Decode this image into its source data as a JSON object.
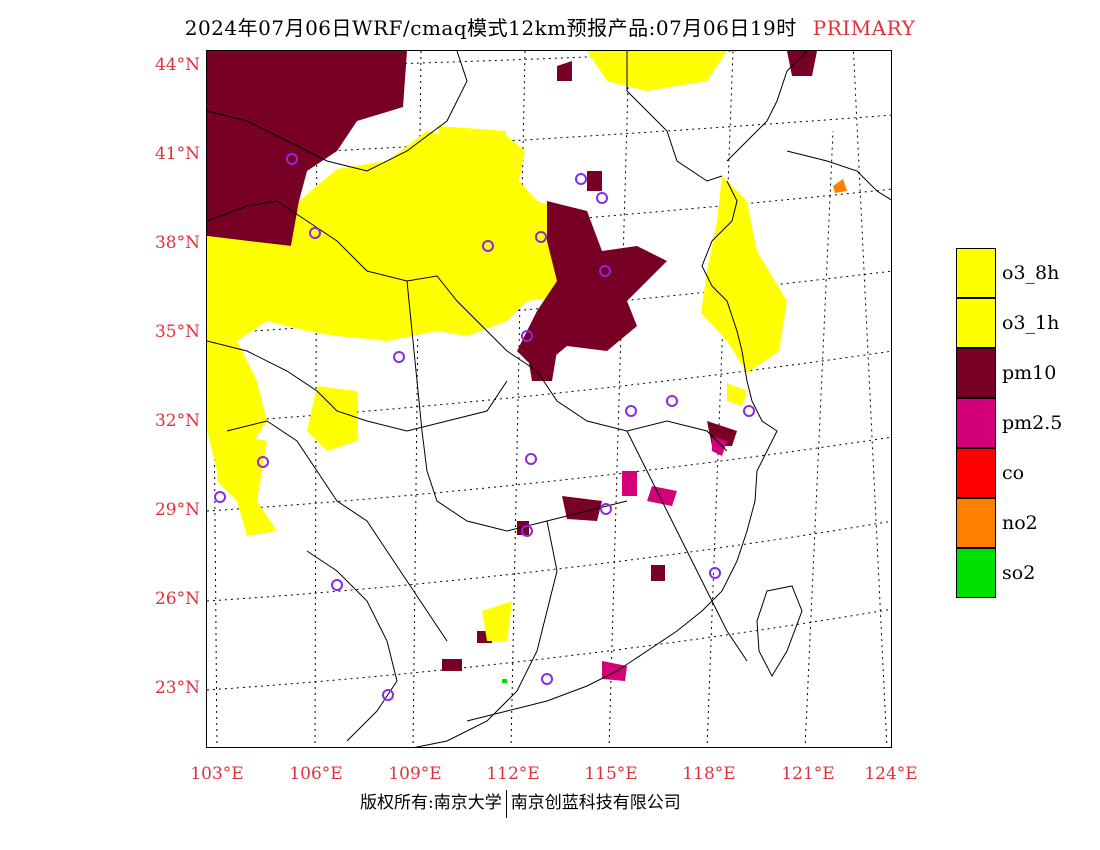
{
  "title": {
    "text": "2024年07月06日WRF/cmaq模式12km预报产品:07月06日19时",
    "tag": "PRIMARY"
  },
  "map": {
    "lat_labels": [
      "44°N",
      "41°N",
      "38°N",
      "35°N",
      "32°N",
      "29°N",
      "26°N",
      "23°N"
    ],
    "lon_labels": [
      "103°E",
      "106°E",
      "109°E",
      "112°E",
      "115°E",
      "118°E",
      "121°E",
      "124°E"
    ]
  },
  "legend": [
    {
      "label": "o3_8h",
      "color": "#ffff00"
    },
    {
      "label": "o3_1h",
      "color": "#ffff00"
    },
    {
      "label": "pm10",
      "color": "#780024"
    },
    {
      "label": "pm2.5",
      "color": "#d3007a"
    },
    {
      "label": "co",
      "color": "#ff0000"
    },
    {
      "label": "no2",
      "color": "#ff7f00"
    },
    {
      "label": "so2",
      "color": "#00e000"
    }
  ],
  "colors": {
    "accent_red": "#e0303c",
    "o3": "#ffff00",
    "pm10": "#780024",
    "pm25": "#d3007a",
    "no2": "#ff7f00",
    "so2": "#00e000",
    "station": "#8a2be2"
  },
  "copyright": {
    "left": "版权所有:南京大学",
    "right": "南京创蓝科技有限公司"
  }
}
